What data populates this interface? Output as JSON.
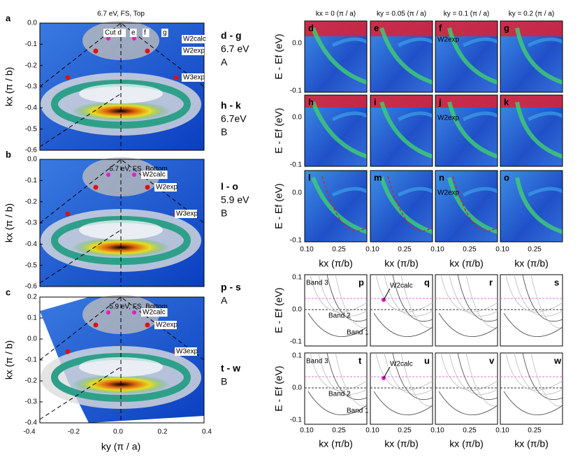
{
  "panel_a": {
    "letter": "a",
    "title": "6.7 eV, FS, Top",
    "y_label": "kx (π / b)",
    "y_ticks": [
      "0.0",
      "-0.1",
      "-0.2",
      "-0.3",
      "-0.4",
      "-0.5",
      "-0.6"
    ],
    "annotations": [
      "Cut d",
      "e",
      "f",
      "g",
      "W2calc",
      "W2exp",
      "W3exp"
    ]
  },
  "panel_b": {
    "letter": "b",
    "title": "6.7 eV, FS, Bottom",
    "y_label": "kx (π / b)",
    "y_ticks": [
      "0.0",
      "-0.1",
      "-0.2",
      "-0.3",
      "-0.4",
      "-0.5",
      "-0.6"
    ],
    "annotations": [
      "W2calc",
      "W2exp",
      "W3exp"
    ]
  },
  "panel_c": {
    "letter": "c",
    "title": "5.9 eV, FS, Bottom",
    "y_label": "kx (π / b)",
    "y_ticks": [
      "0.2",
      "0.1",
      "0.0",
      "-0.1",
      "-0.2",
      "-0.3",
      "-0.4"
    ],
    "x_ticks": [
      "-0.4",
      "-0.2",
      "0.0",
      "0.2",
      "0.4"
    ],
    "x_label": "ky (π / a)",
    "annotations": [
      "W2calc",
      "W2exp",
      "W3exp"
    ]
  },
  "groups": [
    {
      "range": "d - g",
      "energy": "6.7 eV",
      "label": "A"
    },
    {
      "range": "h - k",
      "energy": "6.7eV",
      "label": "B"
    },
    {
      "range": "l - o",
      "energy": "5.9 eV",
      "label": "B"
    },
    {
      "range": "p - s",
      "label": "A"
    },
    {
      "range": "t - w",
      "label": "B"
    }
  ],
  "column_headers": [
    "kx = 0 (π / a)",
    "ky = 0.05 (π / a)",
    "ky = 0.1 (π / a)",
    "ky = 0.2 (π / a)"
  ],
  "arpes": {
    "y_label": "E - Ef (eV)",
    "y_ticks": [
      "0.0",
      "-0.1"
    ],
    "x_ticks": [
      "0.10",
      "0.25"
    ],
    "x_label": "kx (π/b)",
    "letters": [
      [
        "d",
        "e",
        "f",
        "g"
      ],
      [
        "h",
        "i",
        "j",
        "k"
      ],
      [
        "l",
        "m",
        "n",
        "o"
      ]
    ],
    "annotations": [
      "W2exp",
      "W2exp",
      "W2exp"
    ]
  },
  "calc": {
    "y_label": "E - Ef (eV)",
    "y_ticks": [
      "0.1",
      "0.0",
      "-0.1"
    ],
    "x_ticks": [
      "0.10",
      "0.25"
    ],
    "x_label": "kx (π/b)",
    "letters": [
      [
        "p",
        "q",
        "r",
        "s"
      ],
      [
        "t",
        "u",
        "v",
        "w"
      ]
    ],
    "bands": [
      "Band 3",
      "Band 2",
      "Band 1"
    ],
    "calc_label": "W2calc"
  }
}
